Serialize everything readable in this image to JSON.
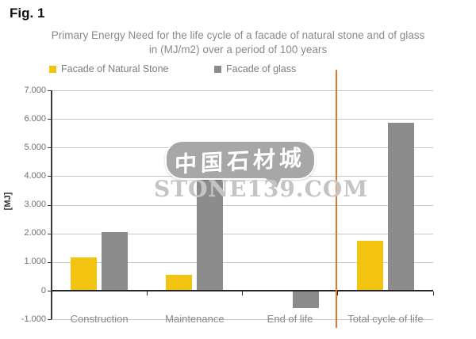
{
  "figure": {
    "label": "Fig. 1"
  },
  "chart": {
    "title_line1": "Primary Energy Need for the life cycle of a facade of natural stone and of glass",
    "title_line2": "in (MJ/m2) over a period of 100 years",
    "y_axis_title": "[MJ]"
  },
  "colors": {
    "natural_stone": "#F2C411",
    "glass": "#8C8C8C",
    "separator": "#E1762F",
    "gridline": "#C8C8C8",
    "axis": "#262626"
  },
  "watermark": {
    "bubble_text": "中国石材城",
    "domain_text": "STONE139.COM"
  },
  "chart_data": {
    "type": "bar",
    "title": "Primary Energy Need for the life cycle of a facade of natural stone and of glass in (MJ/m2) over a period of 100 years",
    "categories": [
      "Construction",
      "Maintenance",
      "End of life",
      "Total cycle of life"
    ],
    "series": [
      {
        "name": "Facade of Natural Stone",
        "color": "#F2C411",
        "values": [
          1150,
          550,
          30,
          1750
        ]
      },
      {
        "name": "Facade of glass",
        "color": "#8C8C8C",
        "values": [
          2050,
          4450,
          -580,
          5870
        ]
      }
    ],
    "xlabel": "",
    "ylabel": "[MJ]",
    "ylim": [
      -1000,
      7000
    ],
    "ytick_values": [
      7000,
      6000,
      5000,
      4000,
      3000,
      2000,
      1000,
      0,
      -1000
    ],
    "ytick_labels": [
      "7.000",
      "6.000",
      "5.000",
      "4.000",
      "3.000",
      "2.000",
      "1.000",
      "0",
      "-1.000"
    ],
    "grid": true,
    "legend_position": "top",
    "separator_after_category": "End of life"
  }
}
